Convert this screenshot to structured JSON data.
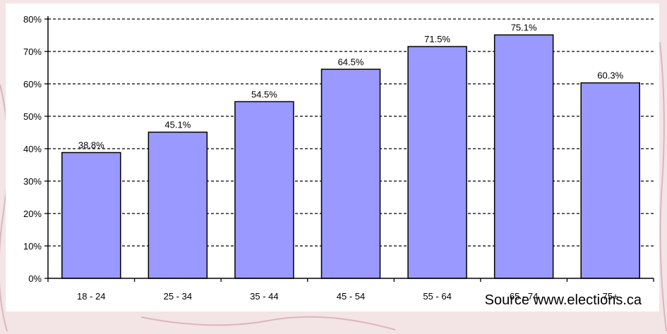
{
  "chart_data": {
    "type": "bar",
    "categories": [
      "18 - 24",
      "25 - 34",
      "35 - 44",
      "45 - 54",
      "55 - 64",
      "65 - 74",
      "75+"
    ],
    "values": [
      38.8,
      45.1,
      54.5,
      64.5,
      71.5,
      75.1,
      60.3
    ],
    "data_labels": [
      "38.8%",
      "45.1%",
      "54.5%",
      "64.5%",
      "71.5%",
      "75.1%",
      "60.3%"
    ],
    "title": "",
    "xlabel": "",
    "ylabel": "",
    "ylim": [
      0,
      80
    ],
    "yticks": [
      0,
      10,
      20,
      30,
      40,
      50,
      60,
      70,
      80
    ],
    "ytick_labels": [
      "0%",
      "10%",
      "20%",
      "30%",
      "40%",
      "50%",
      "60%",
      "70%",
      "80%"
    ],
    "grid": "dashed horizontal",
    "legend": "none",
    "bar_color": "#9999ff",
    "bar_edge_color": "#000000"
  },
  "source_note": "Source www.elections.ca"
}
